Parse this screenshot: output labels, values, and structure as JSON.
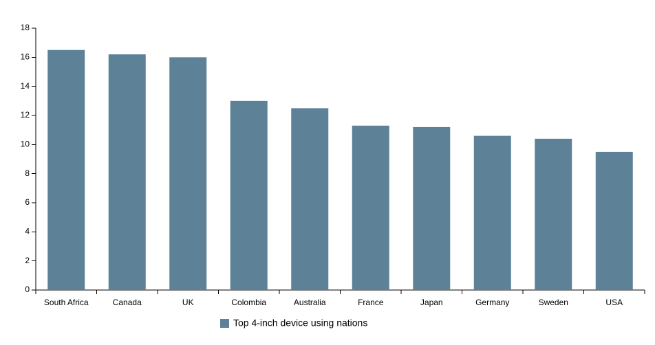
{
  "chart_data": {
    "type": "bar",
    "categories": [
      "South Africa",
      "Canada",
      "UK",
      "Colombia",
      "Australia",
      "France",
      "Japan",
      "Germany",
      "Sweden",
      "USA"
    ],
    "series": [
      {
        "name": "Top 4-inch device using nations",
        "color": "#5d8297",
        "values": [
          16.5,
          16.2,
          16.0,
          13.0,
          12.5,
          11.3,
          11.2,
          10.6,
          10.4,
          9.5
        ]
      }
    ],
    "ylim": [
      0,
      18
    ],
    "yticks": [
      0,
      2,
      4,
      6,
      8,
      10,
      12,
      14,
      16,
      18
    ],
    "grid": false,
    "legend": "bottom"
  }
}
